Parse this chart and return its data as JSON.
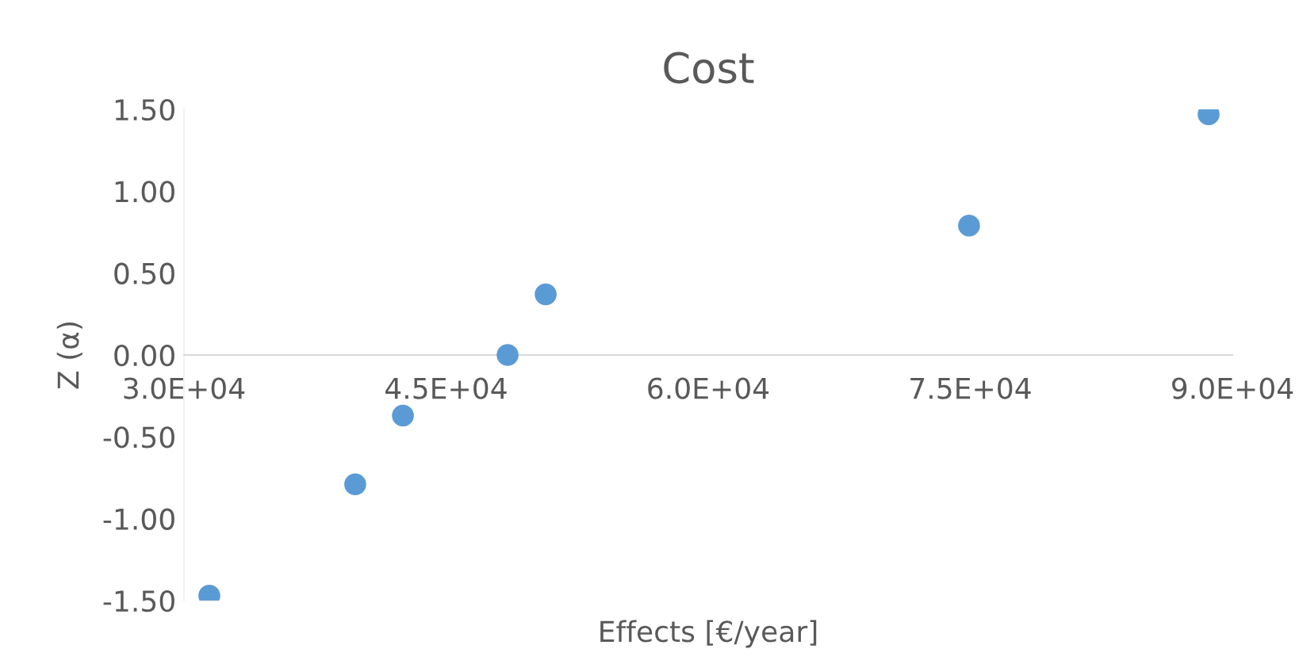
{
  "chart_data": {
    "type": "scatter",
    "title": "Cost",
    "xlabel": "Effects [€/year]",
    "ylabel": "Z (α)",
    "x": [
      31450,
      39800,
      42530,
      48520,
      50700,
      74930,
      88640
    ],
    "series": [
      {
        "color": "#5b9bd5",
        "values": [
          -1.47,
          -0.79,
          -0.37,
          0.0,
          0.37,
          0.79,
          1.47
        ]
      }
    ],
    "marker": "circle",
    "grid": false,
    "legend": false,
    "xlim": [
      30000,
      90000
    ],
    "ylim": [
      -1.5,
      1.5
    ],
    "xticks": [
      {
        "value": 30000,
        "label": "3.0E+04"
      },
      {
        "value": 45000,
        "label": "4.5E+04"
      },
      {
        "value": 60000,
        "label": "6.0E+04"
      },
      {
        "value": 75000,
        "label": "7.5E+04"
      },
      {
        "value": 90000,
        "label": "9.0E+04"
      }
    ],
    "yticks": [
      {
        "value": -1.5,
        "label": "-1.50"
      },
      {
        "value": -1.0,
        "label": "-1.00"
      },
      {
        "value": -0.5,
        "label": "-0.50"
      },
      {
        "value": 0,
        "label": "0.00"
      },
      {
        "value": 0.5,
        "label": "0.50"
      },
      {
        "value": 1.0,
        "label": "1.00"
      },
      {
        "value": 1.5,
        "label": "1.50"
      }
    ]
  }
}
